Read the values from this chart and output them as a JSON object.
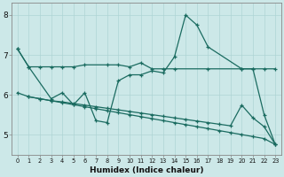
{
  "xlabel": "Humidex (Indice chaleur)",
  "xlim": [
    -0.5,
    23.5
  ],
  "ylim": [
    4.5,
    8.3
  ],
  "xticks": [
    0,
    1,
    2,
    3,
    4,
    5,
    6,
    7,
    8,
    9,
    10,
    11,
    12,
    13,
    14,
    15,
    16,
    17,
    18,
    19,
    20,
    21,
    22,
    23
  ],
  "yticks": [
    5,
    6,
    7,
    8
  ],
  "bg_color": "#cce8e8",
  "grid_color": "#aed4d4",
  "line_color": "#1a6b60",
  "line1_x": [
    0,
    1,
    2,
    3,
    4,
    5,
    6,
    8,
    9,
    10,
    11,
    12,
    13,
    14,
    17,
    20,
    21,
    22,
    23
  ],
  "line1_y": [
    7.15,
    6.7,
    6.7,
    6.7,
    6.7,
    6.7,
    6.75,
    6.75,
    6.75,
    6.7,
    6.8,
    6.65,
    6.65,
    6.65,
    6.65,
    6.65,
    6.65,
    6.65,
    6.65
  ],
  "line2_x": [
    0,
    1,
    3,
    4,
    5,
    6,
    7,
    8,
    9,
    10,
    11,
    12,
    13,
    14,
    15,
    16,
    17,
    20,
    21,
    22,
    23
  ],
  "line2_y": [
    7.15,
    6.7,
    5.9,
    6.05,
    5.75,
    6.05,
    5.35,
    5.3,
    6.35,
    6.5,
    6.5,
    6.6,
    6.55,
    6.95,
    8.0,
    7.75,
    7.2,
    6.65,
    6.65,
    5.5,
    4.75
  ],
  "line3_x": [
    0,
    1,
    2,
    3,
    4,
    5,
    6,
    7,
    8,
    9,
    10,
    11,
    12,
    13,
    14,
    15,
    16,
    17,
    18,
    19,
    20,
    21,
    22,
    23
  ],
  "line3_y": [
    6.05,
    5.95,
    5.9,
    5.85,
    5.8,
    5.75,
    5.7,
    5.65,
    5.6,
    5.55,
    5.5,
    5.45,
    5.4,
    5.35,
    5.3,
    5.25,
    5.2,
    5.15,
    5.1,
    5.05,
    5.0,
    4.95,
    4.9,
    4.75
  ],
  "line4_x": [
    1,
    2,
    3,
    4,
    5,
    6,
    7,
    8,
    9,
    10,
    11,
    12,
    13,
    14,
    15,
    16,
    17,
    18,
    19,
    20,
    21,
    22,
    23
  ],
  "line4_y": [
    5.95,
    5.9,
    5.85,
    5.82,
    5.78,
    5.74,
    5.7,
    5.66,
    5.62,
    5.58,
    5.54,
    5.5,
    5.46,
    5.42,
    5.38,
    5.34,
    5.3,
    5.26,
    5.22,
    5.74,
    5.42,
    5.2,
    4.75
  ]
}
